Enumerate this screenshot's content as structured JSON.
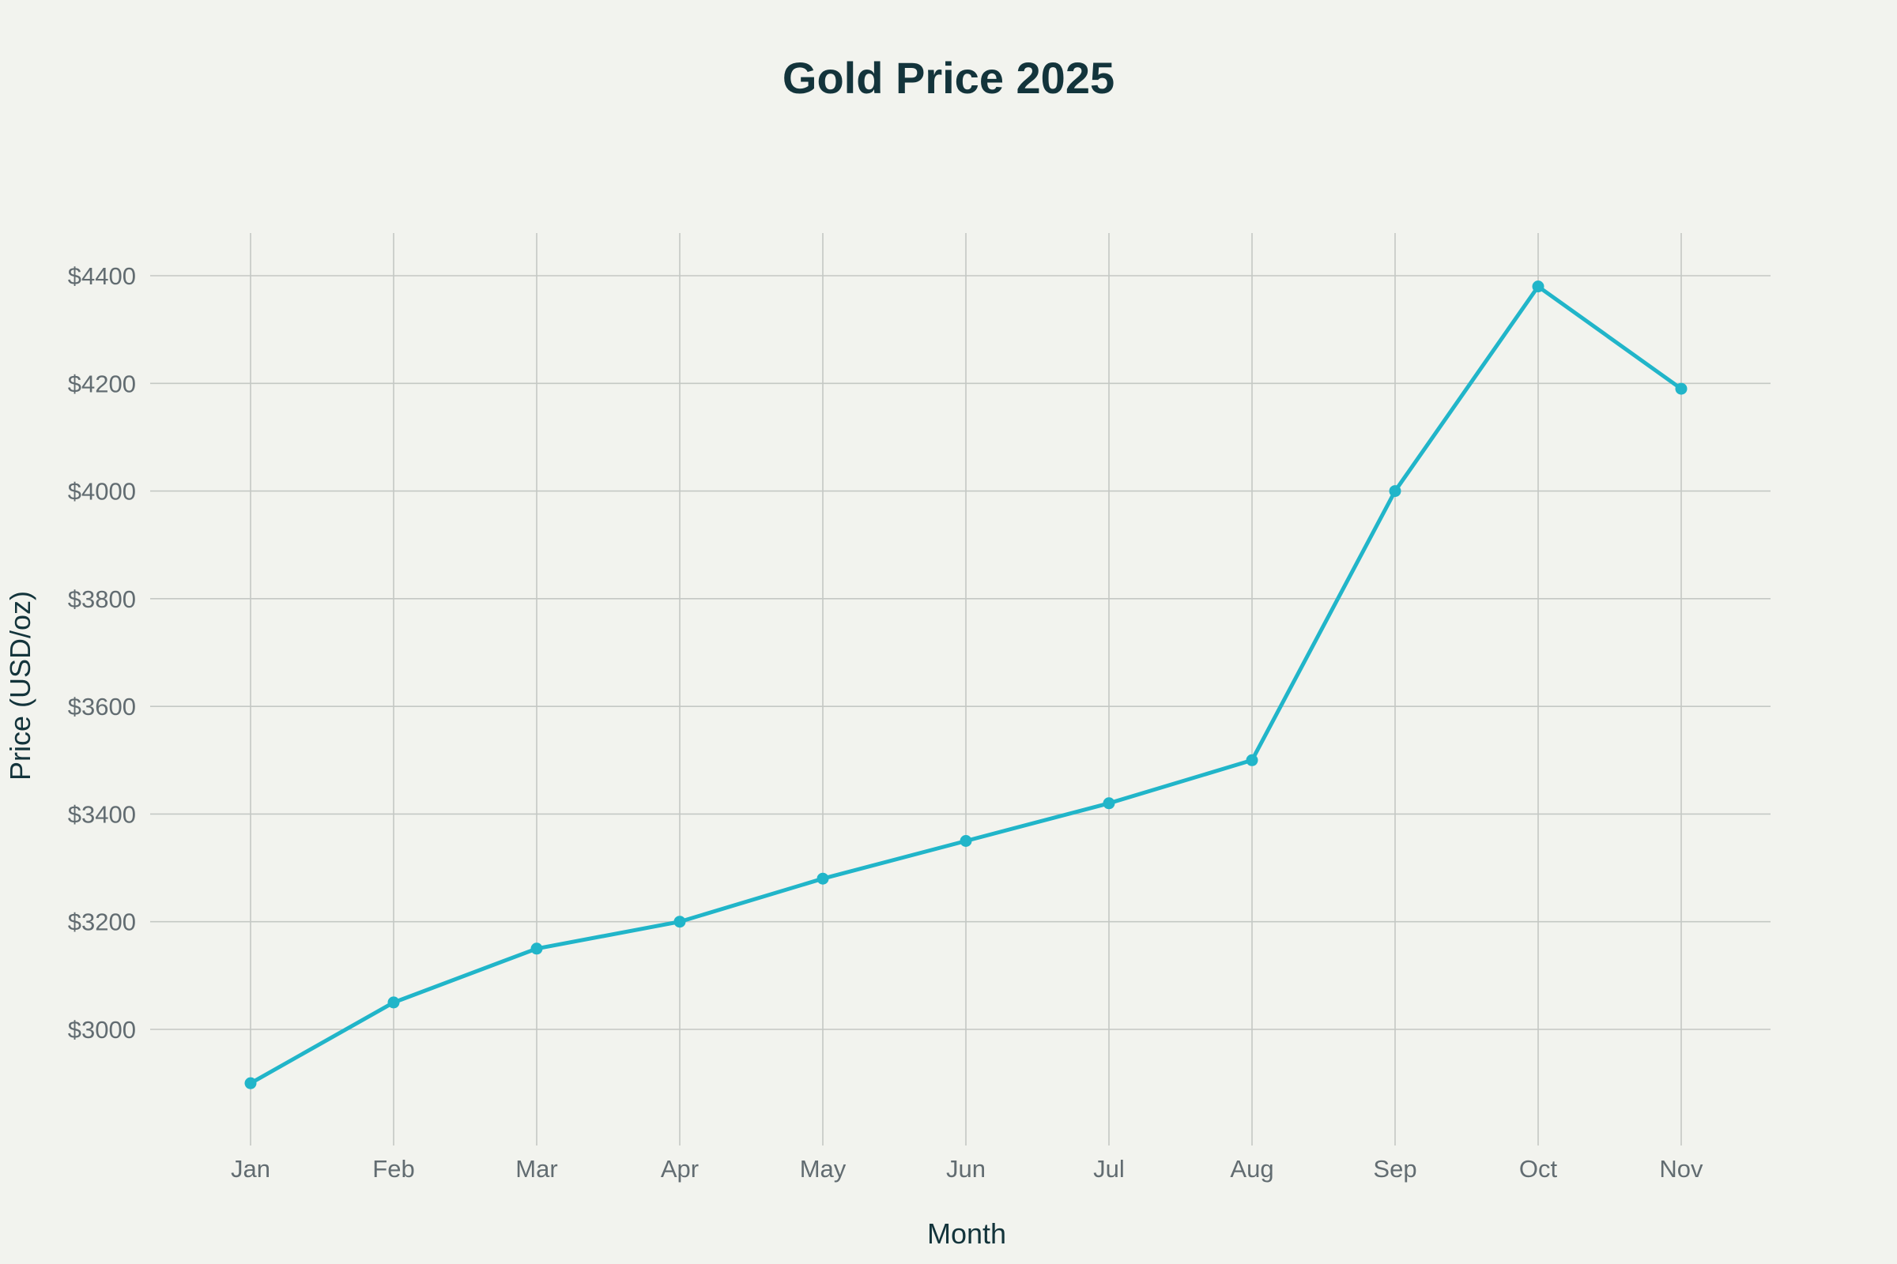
{
  "chart_data": {
    "type": "line",
    "title": "Gold Price 2025",
    "xlabel": "Month",
    "ylabel": "Price (USD/oz)",
    "categories": [
      "Jan",
      "Feb",
      "Mar",
      "Apr",
      "May",
      "Jun",
      "Jul",
      "Aug",
      "Sep",
      "Oct",
      "Nov"
    ],
    "series": [
      {
        "values": [
          2900,
          3050,
          3150,
          3200,
          3280,
          3350,
          3420,
          3500,
          4000,
          4380,
          4190
        ],
        "color": "#21b5c9"
      }
    ],
    "ylim": [
      2800,
      4480
    ],
    "yticks": [
      3000,
      3200,
      3400,
      3600,
      3800,
      4000,
      4200,
      4400
    ],
    "ytick_labels": [
      "$3000",
      "$3200",
      "$3400",
      "$3600",
      "$3800",
      "$4000",
      "$4200",
      "$4400"
    ],
    "grid": true,
    "markers": true
  }
}
